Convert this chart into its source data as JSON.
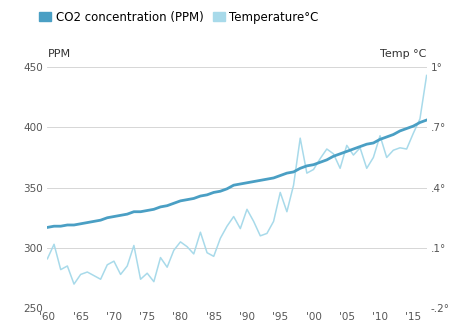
{
  "co2_years": [
    1960,
    1961,
    1962,
    1963,
    1964,
    1965,
    1966,
    1967,
    1968,
    1969,
    1970,
    1971,
    1972,
    1973,
    1974,
    1975,
    1976,
    1977,
    1978,
    1979,
    1980,
    1981,
    1982,
    1983,
    1984,
    1985,
    1986,
    1987,
    1988,
    1989,
    1990,
    1991,
    1992,
    1993,
    1994,
    1995,
    1996,
    1997,
    1998,
    1999,
    2000,
    2001,
    2002,
    2003,
    2004,
    2005,
    2006,
    2007,
    2008,
    2009,
    2010,
    2011,
    2012,
    2013,
    2014,
    2015,
    2016,
    2017
  ],
  "co2_values": [
    317,
    318,
    318,
    319,
    319,
    320,
    321,
    322,
    323,
    325,
    326,
    327,
    328,
    330,
    330,
    331,
    332,
    334,
    335,
    337,
    339,
    340,
    341,
    343,
    344,
    346,
    347,
    349,
    352,
    353,
    354,
    355,
    356,
    357,
    358,
    360,
    362,
    363,
    366,
    368,
    369,
    371,
    373,
    376,
    378,
    380,
    382,
    384,
    386,
    387,
    390,
    392,
    394,
    397,
    399,
    401,
    404,
    406
  ],
  "temp_years": [
    1960,
    1961,
    1962,
    1963,
    1964,
    1965,
    1966,
    1967,
    1968,
    1969,
    1970,
    1971,
    1972,
    1973,
    1974,
    1975,
    1976,
    1977,
    1978,
    1979,
    1980,
    1981,
    1982,
    1983,
    1984,
    1985,
    1986,
    1987,
    1988,
    1989,
    1990,
    1991,
    1992,
    1993,
    1994,
    1995,
    1996,
    1997,
    1998,
    1999,
    2000,
    2001,
    2002,
    2003,
    2004,
    2005,
    2006,
    2007,
    2008,
    2009,
    2010,
    2011,
    2012,
    2013,
    2014,
    2015,
    2016,
    2017
  ],
  "temp_values_ppm": [
    291,
    303,
    282,
    285,
    270,
    278,
    280,
    277,
    274,
    286,
    289,
    278,
    285,
    302,
    274,
    279,
    272,
    292,
    284,
    298,
    305,
    301,
    295,
    313,
    296,
    293,
    308,
    318,
    326,
    316,
    332,
    322,
    310,
    312,
    322,
    346,
    330,
    352,
    391,
    362,
    365,
    374,
    382,
    378,
    366,
    385,
    377,
    383,
    366,
    375,
    393,
    375,
    381,
    383,
    382,
    395,
    407,
    443
  ],
  "ylim": [
    250,
    450
  ],
  "xlim": [
    1960,
    2017
  ],
  "yticks_left": [
    250,
    300,
    350,
    400,
    450
  ],
  "yticks_right_vals": [
    250,
    300,
    350,
    400,
    450
  ],
  "yticks_right_labels": [
    "-.2°",
    ".1°",
    ".4°",
    ".7°",
    "1°"
  ],
  "xticks": [
    1960,
    1965,
    1970,
    1975,
    1980,
    1985,
    1990,
    1995,
    2000,
    2005,
    2010,
    2015
  ],
  "xtick_labels": [
    "'60",
    "'65",
    "'70",
    "'75",
    "'80",
    "'85",
    "'90",
    "'95",
    "'00",
    "'05",
    "'10",
    "'15"
  ],
  "ylabel_left": "PPM",
  "ylabel_right": "Temp °C",
  "co2_color": "#4a9fc4",
  "temp_color": "#a8daea",
  "legend_co2_label": "CO2 concentration (PPM)",
  "legend_temp_label": "Temperature°C",
  "background_color": "#ffffff",
  "grid_color": "#d0d0d0",
  "legend_fontsize": 8.5,
  "axis_label_fontsize": 8,
  "tick_fontsize": 7.5
}
